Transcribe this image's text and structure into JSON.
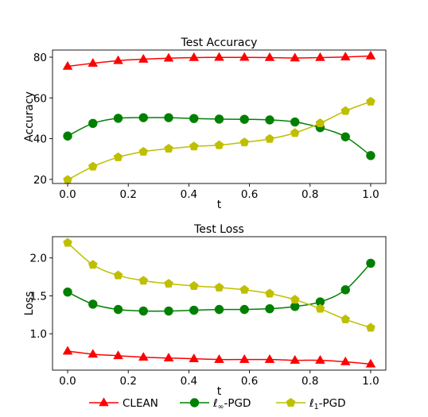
{
  "chart_data": [
    {
      "type": "line",
      "title": "Test Accuracy",
      "xlabel": "t",
      "ylabel": "Accuracy",
      "xlim": [
        -0.05,
        1.05
      ],
      "ylim": [
        18,
        83.5
      ],
      "xticks": [
        0.0,
        0.2,
        0.4,
        0.6,
        0.8,
        1.0
      ],
      "xtick_labels": [
        "0.0",
        "0.2",
        "0.4",
        "0.6",
        "0.8",
        "1.0"
      ],
      "yticks": [
        20,
        40,
        60,
        80
      ],
      "ytick_labels": [
        "20",
        "40",
        "60",
        "80"
      ],
      "grid": false,
      "x": [
        0.0,
        0.0833,
        0.1667,
        0.25,
        0.3333,
        0.4167,
        0.5,
        0.5833,
        0.6667,
        0.75,
        0.8333,
        0.9167,
        1.0
      ],
      "series": [
        {
          "name": "CLEAN",
          "color": "#ff0000",
          "marker": "triangle",
          "values": [
            75.5,
            77.0,
            78.3,
            79.0,
            79.5,
            79.8,
            79.9,
            79.9,
            79.8,
            79.6,
            79.8,
            80.1,
            80.6
          ]
        },
        {
          "name": "ℓ∞-PGD",
          "color": "#008000",
          "marker": "circle",
          "values": [
            41.3,
            47.5,
            50.0,
            50.3,
            50.3,
            49.9,
            49.6,
            49.5,
            49.2,
            48.2,
            45.4,
            40.9,
            31.7
          ]
        },
        {
          "name": "ℓ1-PGD",
          "color": "#bfbf00",
          "marker": "pentagon",
          "values": [
            19.8,
            26.3,
            30.9,
            33.6,
            35.1,
            36.2,
            36.8,
            38.2,
            39.9,
            42.8,
            47.6,
            53.6,
            58.2
          ]
        }
      ]
    },
    {
      "type": "line",
      "title": "Test Loss",
      "xlabel": "t",
      "ylabel": "Loss",
      "xlim": [
        -0.05,
        1.05
      ],
      "ylim": [
        0.52,
        2.28
      ],
      "xticks": [
        0.0,
        0.2,
        0.4,
        0.6,
        0.8,
        1.0
      ],
      "xtick_labels": [
        "0.0",
        "0.2",
        "0.4",
        "0.6",
        "0.8",
        "1.0"
      ],
      "yticks": [
        1.0,
        1.5,
        2.0
      ],
      "ytick_labels": [
        "1.0",
        "1.5",
        "2.0"
      ],
      "grid": false,
      "x": [
        0.0,
        0.0833,
        0.1667,
        0.25,
        0.3333,
        0.4167,
        0.5,
        0.5833,
        0.6667,
        0.75,
        0.8333,
        0.9167,
        1.0
      ],
      "series": [
        {
          "name": "CLEAN",
          "color": "#ff0000",
          "marker": "triangle",
          "values": [
            0.77,
            0.73,
            0.71,
            0.69,
            0.68,
            0.67,
            0.66,
            0.66,
            0.66,
            0.65,
            0.65,
            0.63,
            0.6
          ]
        },
        {
          "name": "ℓ∞-PGD",
          "color": "#008000",
          "marker": "circle",
          "values": [
            1.55,
            1.39,
            1.32,
            1.3,
            1.3,
            1.31,
            1.32,
            1.32,
            1.33,
            1.36,
            1.42,
            1.58,
            1.93
          ]
        },
        {
          "name": "ℓ1-PGD",
          "color": "#bfbf00",
          "marker": "pentagon",
          "values": [
            2.2,
            1.91,
            1.77,
            1.7,
            1.66,
            1.63,
            1.61,
            1.58,
            1.53,
            1.45,
            1.33,
            1.19,
            1.08
          ]
        }
      ]
    }
  ],
  "legend": {
    "placement": "bottom",
    "items": [
      {
        "label": "CLEAN",
        "color": "#ff0000",
        "marker": "triangle"
      },
      {
        "label": "ℓ∞-PGD",
        "color": "#008000",
        "marker": "circle"
      },
      {
        "label": "ℓ1-PGD",
        "color": "#bfbf00",
        "marker": "pentagon"
      }
    ]
  }
}
